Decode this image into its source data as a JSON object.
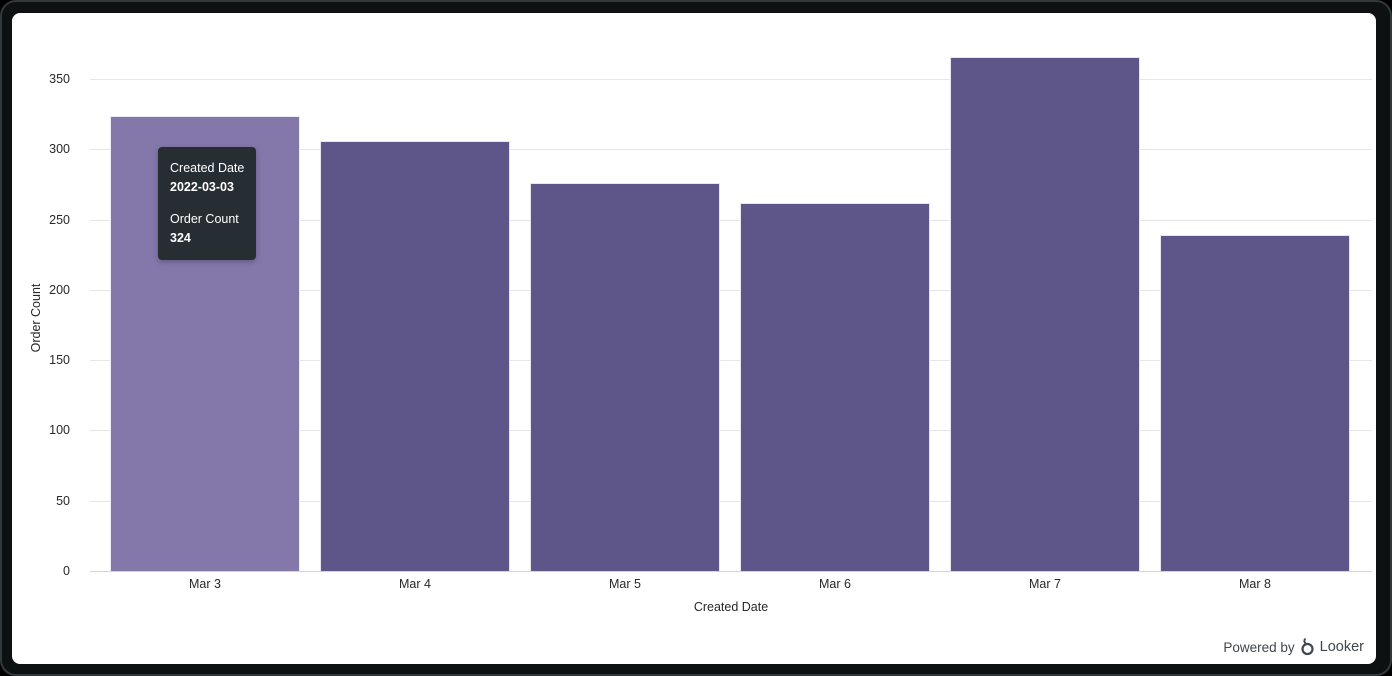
{
  "chart_data": {
    "type": "bar",
    "title": "",
    "categories": [
      "Mar 3",
      "Mar 4",
      "Mar 5",
      "Mar 6",
      "Mar 7",
      "Mar 8"
    ],
    "values": [
      324,
      306,
      276,
      262,
      366,
      239
    ],
    "xlabel": "Created Date",
    "ylabel": "Order Count",
    "ylim": [
      0,
      350
    ],
    "yticks": [
      0,
      50,
      100,
      150,
      200,
      250,
      300,
      350
    ],
    "grid": true,
    "legend": "none",
    "bar_color": "#5E5588",
    "hovered_bar_color": "#8478AB",
    "hovered_index": 0,
    "bar_border_color": "#FFFFFF",
    "grid_color": "#E6E6E6",
    "baseline_color": "#CCD6EB"
  },
  "tooltip": {
    "bg": "#262D33",
    "rows": [
      {
        "label": "Created Date",
        "value": "2022-03-03"
      },
      {
        "label": "Order Count",
        "value": "324"
      }
    ]
  },
  "footer": {
    "powered_by_label": "Powered by",
    "brand": "Looker"
  }
}
